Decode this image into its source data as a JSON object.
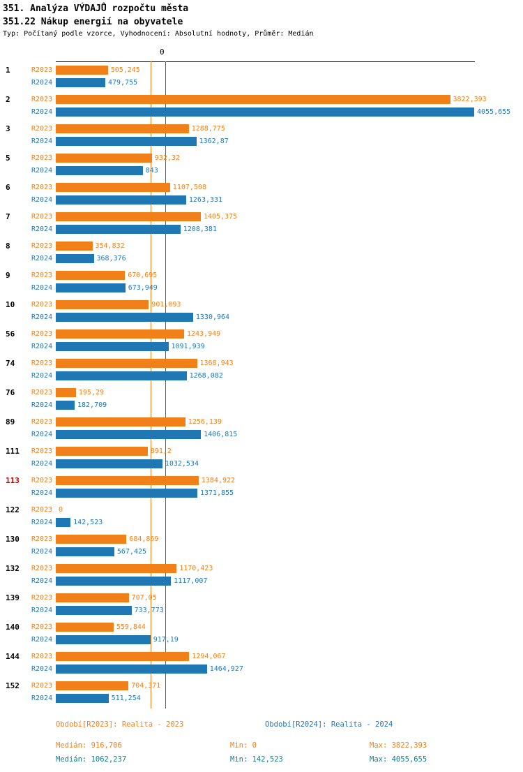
{
  "header": {
    "title": "351. Analýza VÝDAJŮ rozpočtu města",
    "subtitle": "351.22 Nákup energií na obyvatele",
    "meta": "Typ: Počítaný podle vzorce, Vyhodnocení: Absolutní hodnoty, Průměr: Medián"
  },
  "colors": {
    "r2023": "#F28019",
    "r2024": "#1F77B4",
    "highlight_row": "#CC0000",
    "stats_r2024_text": "#0F7F8C",
    "axis": "#000000"
  },
  "chart_data": {
    "type": "bar",
    "orientation": "horizontal",
    "title": "351. Analýza VÝDAJŮ rozpočtu města — 351.22 Nákup energií na obyvatele",
    "axis_zero_label": "0",
    "xlim": [
      0,
      4055.655
    ],
    "grid": "median-lines-only",
    "legend_position": "bottom",
    "categories": [
      "1",
      "2",
      "3",
      "5",
      "6",
      "7",
      "8",
      "9",
      "10",
      "56",
      "74",
      "76",
      "89",
      "111",
      "113",
      "122",
      "130",
      "132",
      "139",
      "140",
      "144",
      "152"
    ],
    "highlighted_category": "113",
    "series": [
      {
        "name": "R2023",
        "color": "#F28019",
        "values": [
          505.245,
          3822.393,
          1288.775,
          932.32,
          1107.508,
          1405.375,
          354.832,
          670.695,
          901.093,
          1243.949,
          1368.943,
          195.29,
          1256.139,
          891.2,
          1384.922,
          0,
          684.869,
          1170.423,
          707.05,
          559.844,
          1294.067,
          704.371
        ],
        "labels": [
          "505,245",
          "3822,393",
          "1288,775",
          "932,32",
          "1107,508",
          "1405,375",
          "354,832",
          "670,695",
          "901,093",
          "1243,949",
          "1368,943",
          "195,29",
          "1256,139",
          "891,2",
          "1384,922",
          "0",
          "684,869",
          "1170,423",
          "707,05",
          "559,844",
          "1294,067",
          "704,371"
        ]
      },
      {
        "name": "R2024",
        "color": "#1F77B4",
        "values": [
          479.755,
          4055.655,
          1362.87,
          843,
          1263.331,
          1208.381,
          368.376,
          673.949,
          1330.964,
          1091.939,
          1268.082,
          182.709,
          1406.815,
          1032.534,
          1371.855,
          142.523,
          567.425,
          1117.007,
          733.773,
          917.19,
          1464.927,
          511.254
        ],
        "labels": [
          "479,755",
          "4055,655",
          "1362,87",
          "843",
          "1263,331",
          "1208,381",
          "368,376",
          "673,949",
          "1330,964",
          "1091,939",
          "1268,082",
          "182,709",
          "1406,815",
          "1032,534",
          "1371,855",
          "142,523",
          "567,425",
          "1117,007",
          "733,773",
          "917,19",
          "1464,927",
          "511,254"
        ]
      }
    ],
    "median_lines": [
      {
        "series": "R2023",
        "value": 916.706,
        "color": "#F28019"
      },
      {
        "series": "R2024",
        "value": 1062.237,
        "color": "#1F77B4"
      }
    ]
  },
  "footer": {
    "legend_r2023": "Období[R2023]: Realita - 2023",
    "legend_r2024": "Období[R2024]: Realita - 2024",
    "stats_r2023": {
      "median": "Medián: 916,706",
      "min": "Min: 0",
      "max": "Max: 3822,393"
    },
    "stats_r2024": {
      "median": "Medián: 1062,237",
      "min": "Min: 142,523",
      "max": "Max: 4055,655"
    }
  }
}
